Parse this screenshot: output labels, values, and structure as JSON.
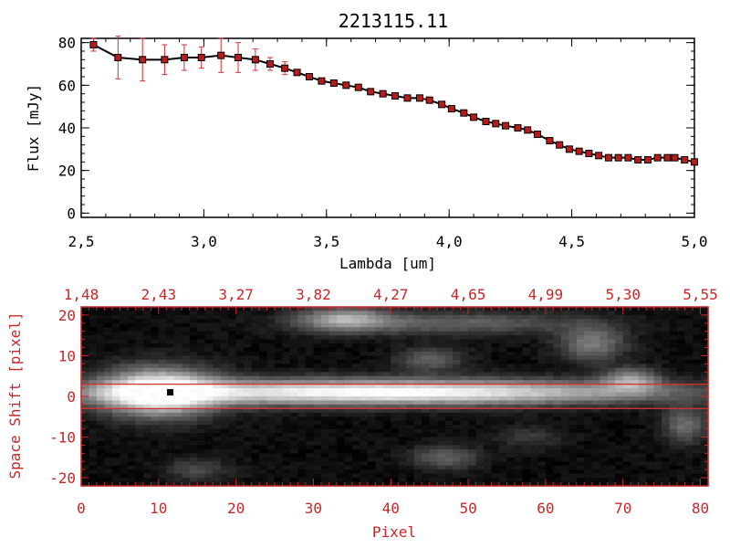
{
  "chart_data": [
    {
      "type": "line",
      "title": "2213115.11",
      "xlabel": "Lambda [um]",
      "ylabel": "Flux [mJy]",
      "xlim": [
        2.5,
        5.0
      ],
      "ylim": [
        -2,
        82
      ],
      "xticks": [
        "2.5",
        "3.0",
        "3.5",
        "4.0",
        "4.5",
        "5.0"
      ],
      "yticks": [
        "0",
        "20",
        "40",
        "60",
        "80"
      ],
      "line_color": "#000000",
      "marker_color": "#b71c1c",
      "errorbar_color": "#d32f2f",
      "series": [
        {
          "x": [
            2.55,
            2.65,
            2.75,
            2.84,
            2.92,
            2.99,
            3.07,
            3.14,
            3.21,
            3.27,
            3.33,
            3.38,
            3.43,
            3.48,
            3.53,
            3.58,
            3.63,
            3.68,
            3.73,
            3.78,
            3.83,
            3.88,
            3.92,
            3.97,
            4.01,
            4.06,
            4.1,
            4.15,
            4.19,
            4.23,
            4.28,
            4.32,
            4.36,
            4.41,
            4.45,
            4.49,
            4.53,
            4.57,
            4.61,
            4.65,
            4.69,
            4.73,
            4.77,
            4.81,
            4.85,
            4.89,
            4.92,
            4.96,
            5.0
          ],
          "y": [
            79,
            73,
            72,
            72,
            73,
            73,
            74,
            73,
            72,
            70,
            68,
            66,
            64,
            62,
            61,
            60,
            59,
            57,
            56,
            55,
            54,
            54,
            53,
            51,
            49,
            47,
            45,
            43,
            42,
            41,
            40,
            39,
            37,
            34,
            32,
            30,
            29,
            28,
            27,
            26,
            26,
            26,
            25,
            25,
            26,
            26,
            26,
            25,
            24
          ],
          "err": [
            3,
            10,
            10,
            7,
            6,
            5,
            8,
            7,
            5,
            3,
            3,
            1,
            1,
            1,
            1,
            1,
            1,
            1,
            1,
            1,
            1,
            1,
            1,
            1,
            1,
            1,
            1,
            1,
            1,
            1,
            1,
            1,
            1,
            1,
            1,
            1,
            1,
            1,
            1,
            1,
            1,
            1,
            1,
            1,
            1,
            1,
            1,
            1,
            1
          ]
        }
      ]
    },
    {
      "type": "heatmap",
      "xlabel": "Pixel",
      "ylabel": "Space Shift [pixel]",
      "xlim": [
        0,
        81
      ],
      "ylim": [
        -22,
        22
      ],
      "xticks": [
        "0",
        "10",
        "20",
        "30",
        "40",
        "50",
        "60",
        "70",
        "80"
      ],
      "yticks": [
        "-20",
        "-10",
        "0",
        "10",
        "20"
      ],
      "top_ticks": [
        "1.48",
        "2.43",
        "3.27",
        "3.82",
        "4.27",
        "4.65",
        "4.99",
        "5.30",
        "5.55"
      ],
      "axis_color": "#c62828",
      "guide_lines_y": [
        3,
        -3
      ],
      "marker": {
        "x": 11.5,
        "y": 1
      },
      "blobs": [
        {
          "x": 10,
          "y": 1,
          "amp": 1.0,
          "sx": 5,
          "sy": 4
        },
        {
          "x": 30,
          "y": 1,
          "amp": 0.7,
          "sx": 24,
          "sy": 2.2
        },
        {
          "x": 50,
          "y": 1,
          "amp": 0.45,
          "sx": 20,
          "sy": 2
        },
        {
          "x": 71,
          "y": 4,
          "amp": 0.5,
          "sx": 2.5,
          "sy": 2
        },
        {
          "x": 34,
          "y": 19,
          "amp": 0.55,
          "sx": 4,
          "sy": 2
        },
        {
          "x": 48,
          "y": 18,
          "amp": 0.3,
          "sx": 12,
          "sy": 2
        },
        {
          "x": 66,
          "y": 13,
          "amp": 0.4,
          "sx": 3,
          "sy": 3
        },
        {
          "x": 45,
          "y": 9,
          "amp": 0.3,
          "sx": 3,
          "sy": 2
        },
        {
          "x": 47,
          "y": -15,
          "amp": 0.3,
          "sx": 3,
          "sy": 2
        },
        {
          "x": 78,
          "y": -7,
          "amp": 0.35,
          "sx": 2,
          "sy": 3
        },
        {
          "x": 15,
          "y": -18,
          "amp": 0.2,
          "sx": 3,
          "sy": 2
        },
        {
          "x": 58,
          "y": -10,
          "amp": 0.15,
          "sx": 3,
          "sy": 2
        }
      ]
    }
  ]
}
